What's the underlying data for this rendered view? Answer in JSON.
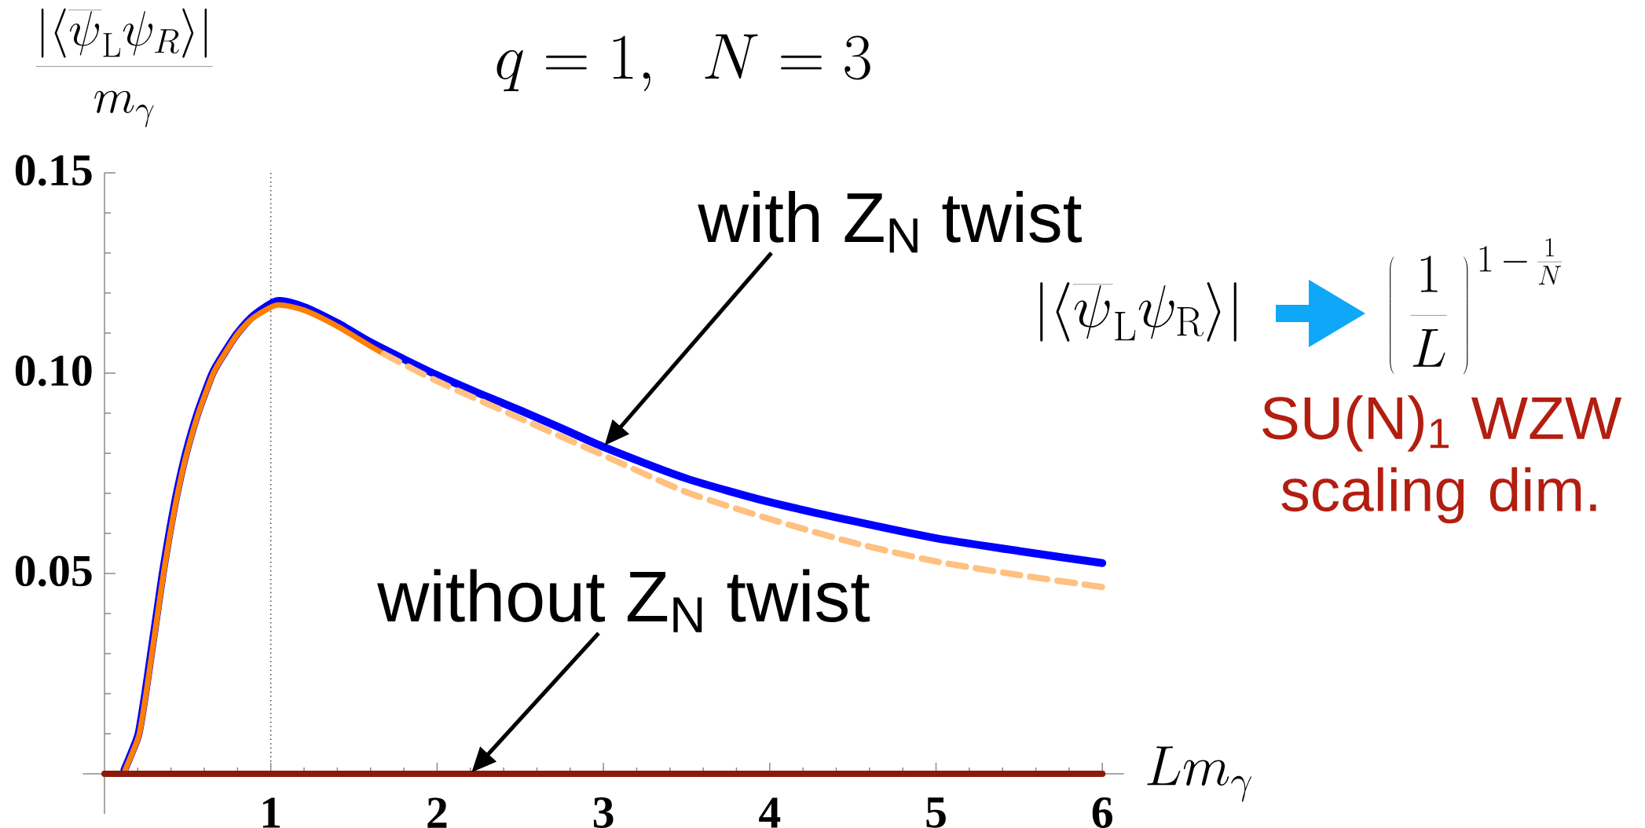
{
  "chart_data": {
    "type": "line",
    "title": "q = 1,\\ \\ N = 3",
    "xlabel": "Lm_{\\gamma}",
    "ylabel": "\\frac{|\\langle\\overline{\\psi}_{\\mathrm{L}}\\psi_{R}\\rangle|}{m_{\\gamma}}",
    "xlim": [
      -0.13,
      6.13
    ],
    "ylim": [
      -0.01,
      0.15
    ],
    "xticks": [
      {
        "value": 0.2,
        "label": null
      },
      {
        "value": 0.4,
        "label": null
      },
      {
        "value": 0.6,
        "label": null
      },
      {
        "value": 0.8,
        "label": null
      },
      1,
      {
        "value": 1.2,
        "label": null
      },
      {
        "value": 1.4,
        "label": null
      },
      {
        "value": 1.6,
        "label": null
      },
      {
        "value": 1.8,
        "label": null
      },
      2,
      {
        "value": 2.2,
        "label": null
      },
      {
        "value": 2.4,
        "label": null
      },
      {
        "value": 2.6,
        "label": null
      },
      {
        "value": 2.8,
        "label": null
      },
      3,
      {
        "value": 3.2,
        "label": null
      },
      {
        "value": 3.4,
        "label": null
      },
      {
        "value": 3.6,
        "label": null
      },
      {
        "value": 3.8,
        "label": null
      },
      4,
      {
        "value": 4.2,
        "label": null
      },
      {
        "value": 4.4,
        "label": null
      },
      {
        "value": 4.6,
        "label": null
      },
      {
        "value": 4.8,
        "label": null
      },
      5,
      {
        "value": 5.2,
        "label": null
      },
      {
        "value": 5.4,
        "label": null
      },
      {
        "value": 5.6,
        "label": null
      },
      {
        "value": 5.8,
        "label": null
      },
      6
    ],
    "yticks": [
      {
        "value": 0.01,
        "label": null
      },
      {
        "value": 0.02,
        "label": null
      },
      {
        "value": 0.03,
        "label": null
      },
      {
        "value": 0.04,
        "label": null
      },
      0.05,
      {
        "value": 0.06,
        "label": null
      },
      {
        "value": 0.07,
        "label": null
      },
      {
        "value": 0.08,
        "label": null
      },
      {
        "value": 0.09,
        "label": null
      },
      {
        "value": 0.1,
        "label": "0.10"
      },
      {
        "value": 0.11,
        "label": null
      },
      {
        "value": 0.12,
        "label": null
      },
      {
        "value": 0.13,
        "label": null
      },
      {
        "value": 0.14,
        "label": null
      },
      0.15
    ],
    "series": [
      {
        "color": "#0000ff",
        "x": [
          0.12,
          0.16,
          0.205,
          0.245,
          0.28,
          0.315,
          0.35,
          0.39,
          0.435,
          0.49,
          0.56,
          0.65,
          0.72,
          0.8,
          0.9,
          1.04,
          1.2,
          1.4,
          1.6,
          1.8,
          2.0,
          2.25,
          2.5,
          2.75,
          3.0,
          3.5,
          4.0,
          4.5,
          5.0,
          5.5,
          6.0
        ],
        "values": [
          0.001,
          0.005,
          0.01,
          0.02,
          0.03,
          0.04,
          0.05,
          0.06,
          0.07,
          0.08,
          0.09,
          0.1,
          0.105,
          0.11,
          0.1145,
          0.118,
          0.1165,
          0.1125,
          0.1077,
          0.1035,
          0.0995,
          0.095,
          0.0907,
          0.0862,
          0.0816,
          0.0737,
          0.0678,
          0.0631,
          0.0588,
          0.0556,
          0.0526
        ]
      },
      {
        "color": "#ff7f00",
        "x": [
          0.125,
          0.165,
          0.21,
          0.25,
          0.285,
          0.32,
          0.355,
          0.395,
          0.44,
          0.495,
          0.565,
          0.655,
          0.725,
          0.805,
          0.9,
          1.04,
          1.2,
          1.4,
          1.6,
          1.68
        ],
        "values": [
          0.001,
          0.005,
          0.01,
          0.02,
          0.03,
          0.04,
          0.05,
          0.06,
          0.07,
          0.08,
          0.09,
          0.1,
          0.105,
          0.11,
          0.114,
          0.117,
          0.1157,
          0.1117,
          0.1067,
          0.1048
        ]
      },
      {
        "color": "#ffc080",
        "line_style": "dashed",
        "x": [
          1.68,
          2.0,
          2.5,
          3.0,
          3.5,
          4.0,
          4.5,
          5.0,
          5.5,
          6.0
        ],
        "values": [
          0.1048,
          0.098,
          0.0887,
          0.0795,
          0.0703,
          0.0636,
          0.0577,
          0.053,
          0.0496,
          0.0466
        ]
      },
      {
        "color": "#8c1a0a",
        "x": [
          0,
          6
        ],
        "values": [
          0,
          0
        ]
      }
    ],
    "ref_lines": [
      {
        "axis": "x",
        "value": 1,
        "color": "#404040",
        "line_style": "dotted"
      }
    ],
    "annotations": [
      "with Z$_{N}$ twist",
      {
        "text": "without Z$_{N}$ twist",
        "x": 2.2,
        "y": 0
      },
      "|\\langle\\overline{\\psi}_{\\mathrm{L}}\\psi_{\\mathrm{R}}\\rangle|",
      "\\left(\\;\\frac{1}{L}\\;\\right)^{\\,1\\,-\\,\\frac{1}{N}}",
      "SU(N)$_{1}$ WZW scaling dim."
    ]
  }
}
